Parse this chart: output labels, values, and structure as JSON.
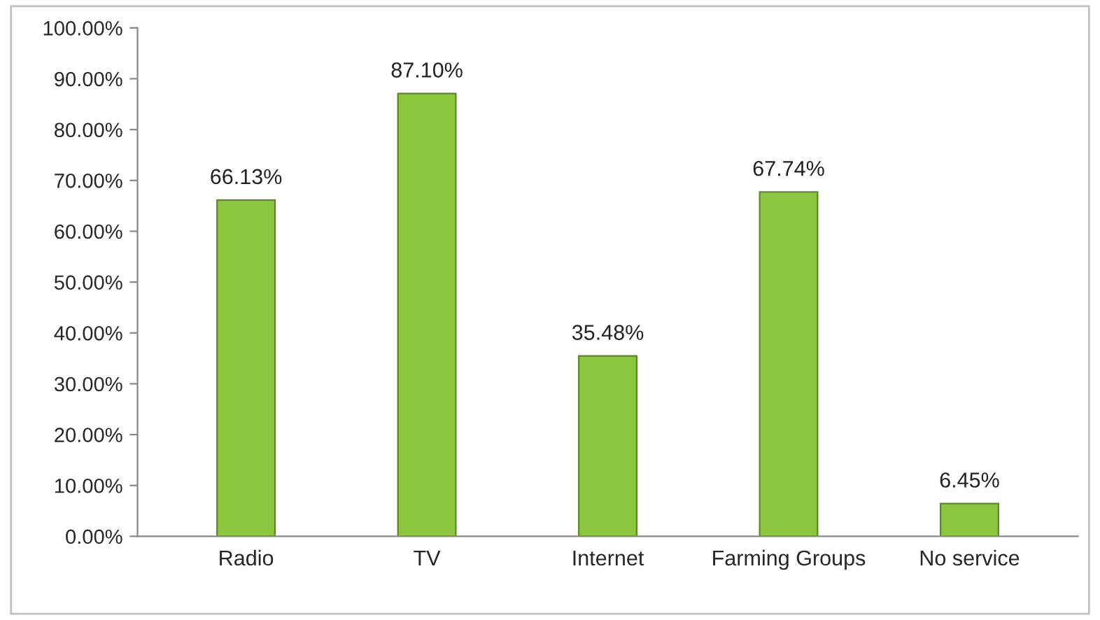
{
  "chart_data": {
    "type": "bar",
    "categories": [
      "Radio",
      "TV",
      "Internet",
      "Farming Groups",
      "No service"
    ],
    "values": [
      66.13,
      87.1,
      35.48,
      67.74,
      6.45
    ],
    "value_labels": [
      "66.13%",
      "87.10%",
      "35.48%",
      "67.74%",
      "6.45%"
    ],
    "color": "#8dc63f",
    "ylim": [
      0,
      100
    ],
    "yticks": [
      {
        "value": 0,
        "label": "0.00%"
      },
      {
        "value": 10,
        "label": "10.00%"
      },
      {
        "value": 20,
        "label": "20.00%"
      },
      {
        "value": 30,
        "label": "30.00%"
      },
      {
        "value": 40,
        "label": "40.00%"
      },
      {
        "value": 50,
        "label": "50.00%"
      },
      {
        "value": 60,
        "label": "60.00%"
      },
      {
        "value": 70,
        "label": "70.00%"
      },
      {
        "value": 80,
        "label": "80.00%"
      },
      {
        "value": 90,
        "label": "90.00%"
      },
      {
        "value": 100,
        "label": "100.00%"
      }
    ],
    "grid": false,
    "legend": false
  }
}
